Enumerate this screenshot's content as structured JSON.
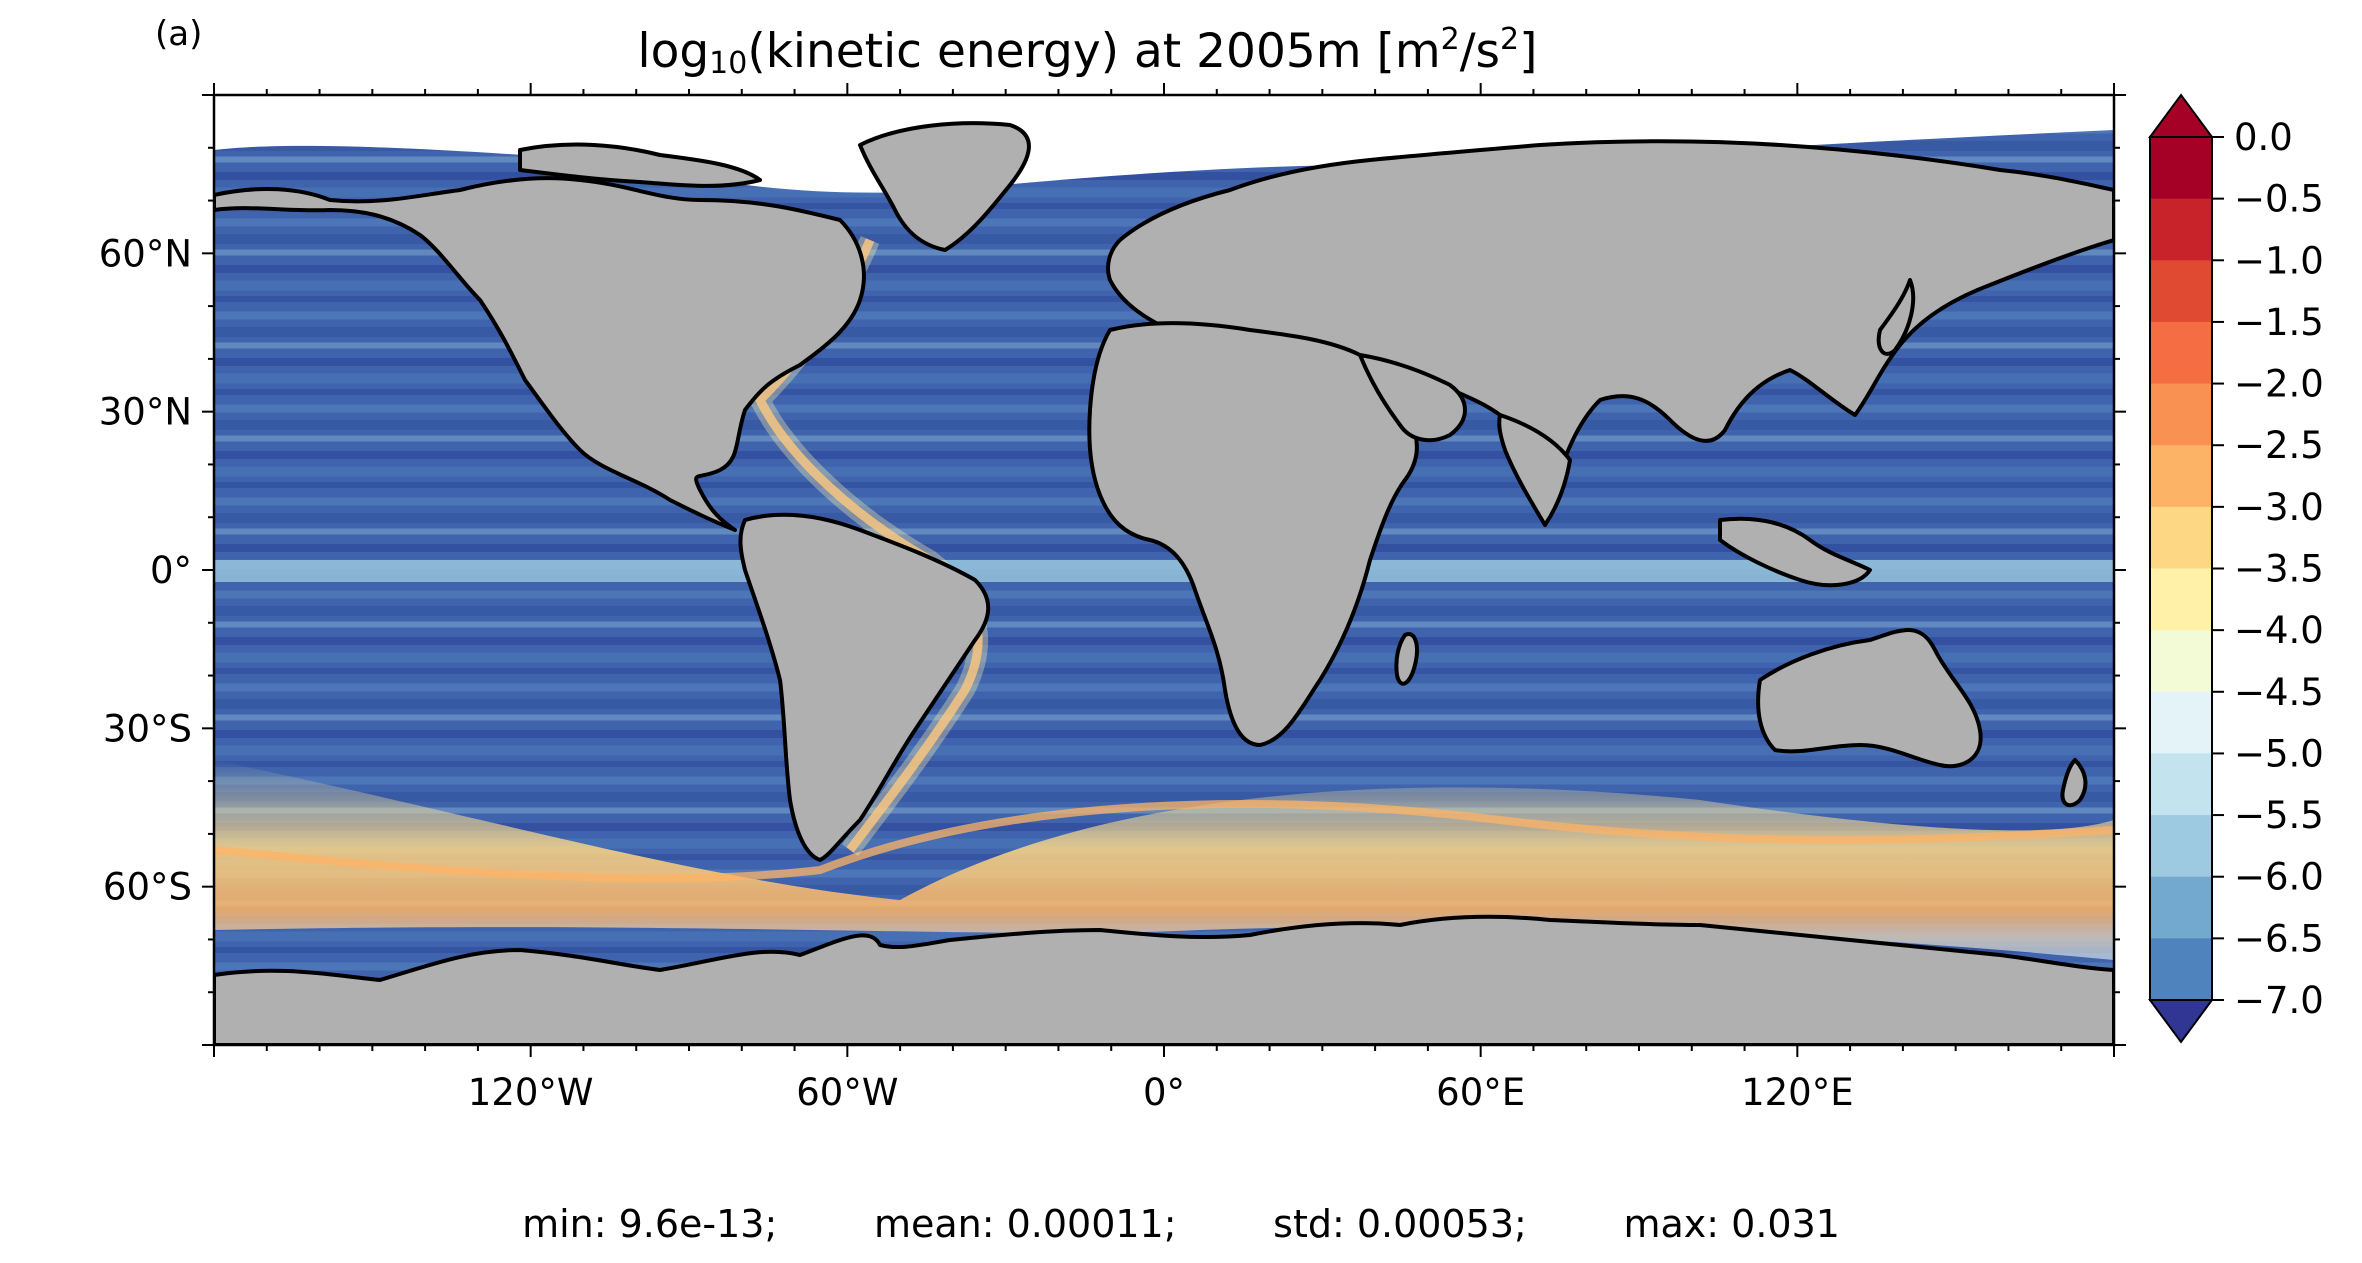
{
  "panel_label": "(a)",
  "title": {
    "prefix": "log",
    "subscript": "10",
    "quantity": "(kinetic energy) at 2005m [m",
    "sup1": "2",
    "middle": "/s",
    "sup2": "2",
    "suffix": "]"
  },
  "map": {
    "projection": "equirectangular",
    "land_color": "#b0b0b0",
    "coastline_color": "#000000",
    "no_data_color": "#ffffff",
    "lon_range": [
      -180,
      180
    ],
    "lat_range": [
      -90,
      90
    ],
    "x_ticks": [
      "120°W",
      "60°W",
      "0°",
      "60°E",
      "120°E"
    ],
    "y_ticks": [
      "60°N",
      "30°N",
      "0°",
      "30°S",
      "60°S"
    ]
  },
  "colorbar": {
    "extend": "both",
    "levels": [
      "0.0",
      "−0.5",
      "−1.0",
      "−1.5",
      "−2.0",
      "−2.5",
      "−3.0",
      "−3.5",
      "−4.0",
      "−4.5",
      "−5.0",
      "−5.5",
      "−6.0",
      "−6.5",
      "−7.0"
    ],
    "colors_top_to_bottom": [
      "#a50026",
      "#c8232a",
      "#e04a33",
      "#f46d43",
      "#f99153",
      "#fdb365",
      "#fed785",
      "#fff1a8",
      "#f3fbd6",
      "#e3f3f7",
      "#c3e4ef",
      "#9ecae1",
      "#74a9cf",
      "#4f83bd",
      "#3a5ca9"
    ],
    "under_color": "#313695",
    "over_color": "#a50026"
  },
  "chart_data": {
    "type": "heatmap",
    "title": "log10(kinetic energy) at 2005m [m2/s2]",
    "value_range": [
      -7.0,
      0.0
    ],
    "colorbar_ticks": [
      0.0,
      -0.5,
      -1.0,
      -1.5,
      -2.0,
      -2.5,
      -3.0,
      -3.5,
      -4.0,
      -4.5,
      -5.0,
      -5.5,
      -6.0,
      -6.5,
      -7.0
    ]
  },
  "stats": {
    "min": "min: 9.6e-13;",
    "mean": "mean: 0.00011;",
    "std": "std: 0.00053;",
    "max": "max: 0.031"
  }
}
